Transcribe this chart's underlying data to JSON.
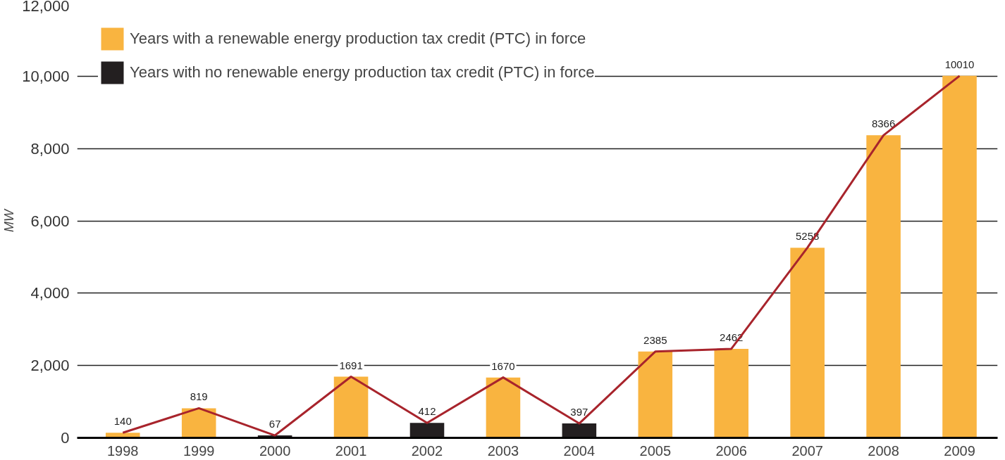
{
  "chart_data": {
    "type": "bar",
    "ylabel": "MW",
    "categories": [
      "1998",
      "1999",
      "2000",
      "2001",
      "2002",
      "2003",
      "2004",
      "2005",
      "2006",
      "2007",
      "2008",
      "2009"
    ],
    "series": [
      {
        "name": "Years with a renewable energy production tax credit (PTC) in force",
        "color": "#f9b440",
        "values": [
          140,
          819,
          null,
          1691,
          null,
          1670,
          null,
          2385,
          2462,
          5258,
          8366,
          10010
        ],
        "value_labels": [
          "140",
          "819",
          null,
          "1691",
          null,
          "1670",
          null,
          "2385",
          "2462",
          "5258",
          "8366",
          "10010"
        ]
      },
      {
        "name": "Years with no renewable energy production tax credit (PTC) in force",
        "color": "#231f20",
        "values": [
          null,
          null,
          67,
          null,
          412,
          null,
          397,
          null,
          null,
          null,
          null,
          null
        ],
        "value_labels": [
          null,
          null,
          "67",
          null,
          "412",
          null,
          "397",
          null,
          null,
          null,
          null,
          null
        ]
      },
      {
        "type": "line",
        "color": "#a8242c",
        "values": [
          140,
          819,
          67,
          1691,
          412,
          1670,
          397,
          2385,
          2462,
          5258,
          8366,
          10010
        ]
      }
    ],
    "ylim": [
      0,
      12000
    ],
    "yticks": [
      0,
      {
        "value": 2000,
        "label": "2,000"
      },
      {
        "value": 4000,
        "label": "4,000"
      },
      {
        "value": 6000,
        "label": "6,000"
      },
      {
        "value": 8000,
        "label": "8,000"
      },
      {
        "value": 10000,
        "label": "10,000"
      },
      {
        "value": 12000,
        "label": "12,000"
      }
    ],
    "grid": "y",
    "legend": "top left",
    "line_style": "solid"
  }
}
